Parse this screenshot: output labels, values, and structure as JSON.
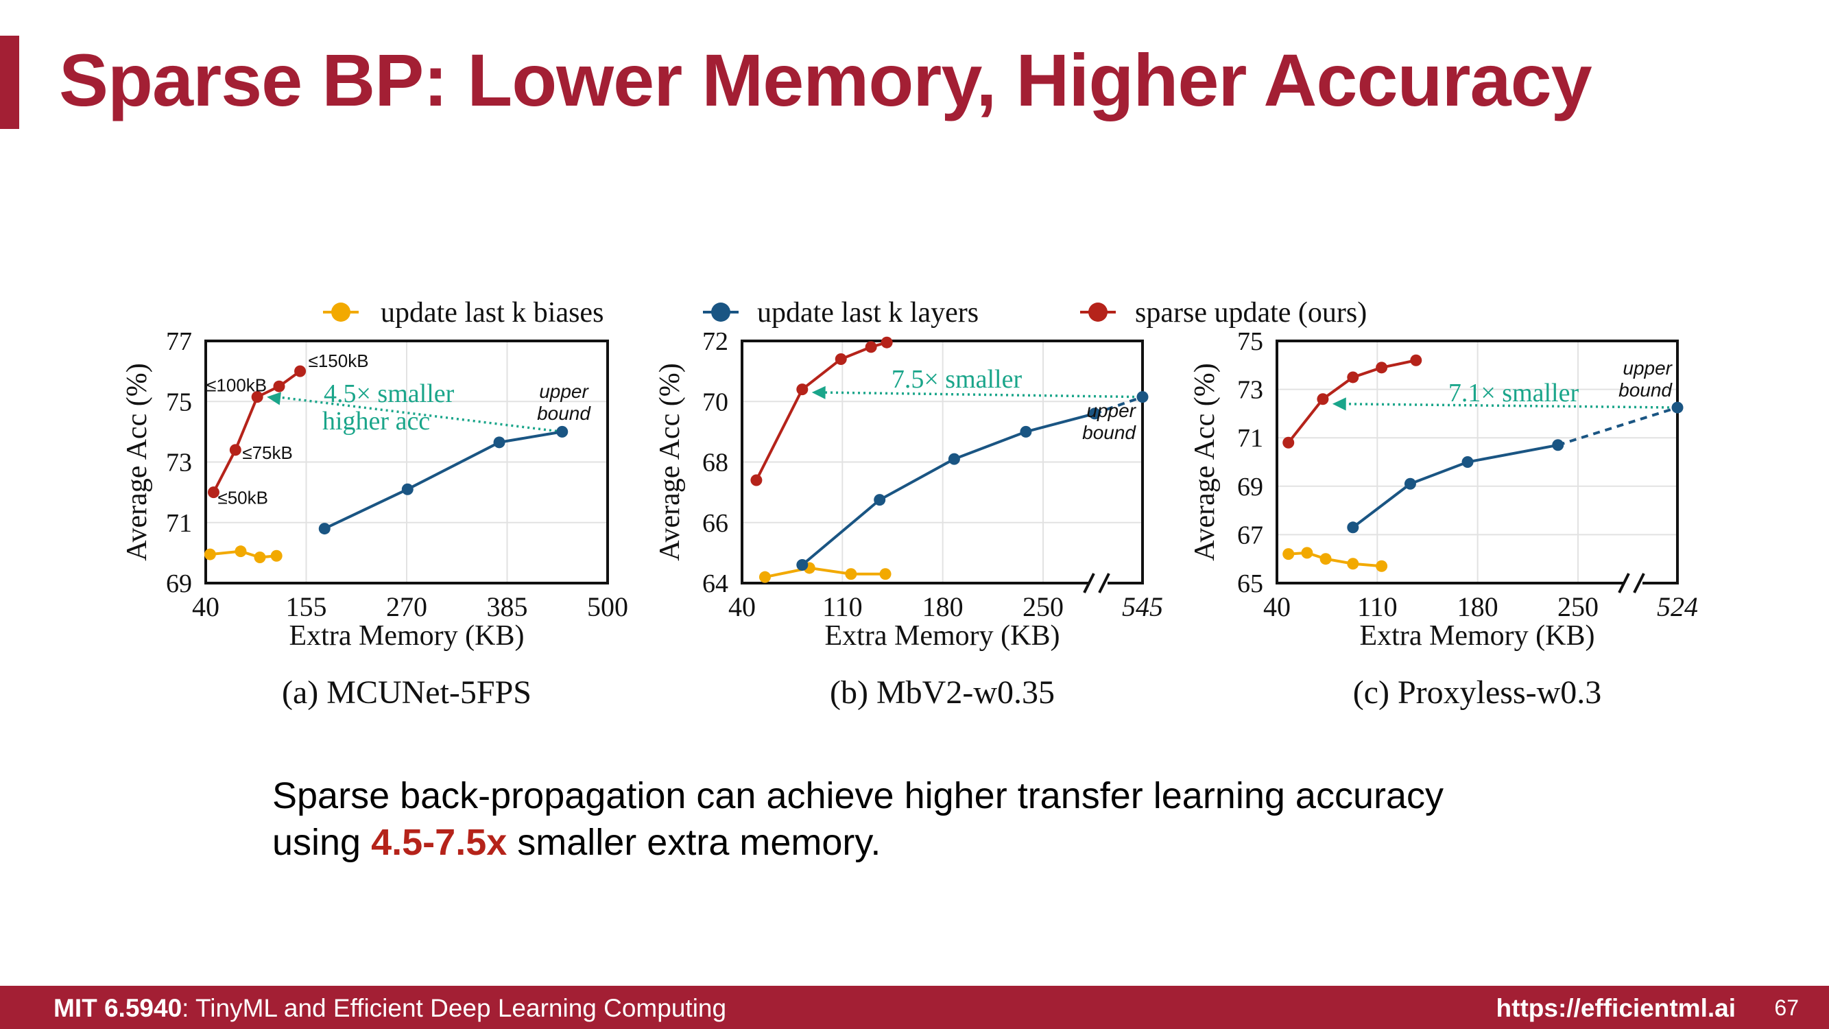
{
  "slide": {
    "title": "Sparse BP: Lower Memory, Higher Accuracy",
    "caption_line1": "Sparse back-propagation can achieve higher transfer learning accuracy",
    "caption_line2_pre": "using ",
    "caption_highlight": "4.5-7.5x",
    "caption_line2_post": " smaller extra memory.",
    "footer_course": "MIT 6.5940",
    "footer_subtitle": ": TinyML and Efficient Deep Learning Computing",
    "footer_url": "https://efficientml.ai",
    "page_number": "67"
  },
  "colors": {
    "brand": "#a31f34",
    "biases": "#f2a900",
    "layers": "#1a5583",
    "sparse": "#b5231a",
    "annotation": "#1aa58a"
  },
  "legend": [
    {
      "key": "biases",
      "label": "update last k biases"
    },
    {
      "key": "layers",
      "label": "update last k layers"
    },
    {
      "key": "sparse",
      "label": "sparse update (ours)"
    }
  ],
  "chart_data": [
    {
      "type": "line",
      "caption": "(a)  MCUNet-5FPS",
      "xlabel": "Extra Memory (KB)",
      "ylabel": "Average Acc (%)",
      "xlim": [
        40,
        500
      ],
      "ylim": [
        69,
        77
      ],
      "xticks": [
        "40",
        "155",
        "270",
        "385",
        "500"
      ],
      "yticks": [
        "69",
        "71",
        "73",
        "75",
        "77"
      ],
      "series": [
        {
          "name": "update last k biases",
          "key": "biases",
          "x": [
            45,
            80,
            102,
            121
          ],
          "y": [
            69.95,
            70.05,
            69.85,
            69.9
          ]
        },
        {
          "name": "update last k layers",
          "key": "layers",
          "x": [
            176,
            271,
            376,
            448
          ],
          "y": [
            70.8,
            72.1,
            73.65,
            74.0
          ]
        },
        {
          "name": "sparse update (ours)",
          "key": "sparse",
          "x": [
            49,
            74,
            99,
            124,
            148
          ],
          "y": [
            72.0,
            73.4,
            75.15,
            75.5,
            76.0
          ]
        }
      ],
      "point_labels": [
        {
          "series": "sparse",
          "index": 0,
          "text": "≤50kB"
        },
        {
          "series": "sparse",
          "index": 1,
          "text": "≤75kB"
        },
        {
          "series": "sparse",
          "index": 2,
          "text": "≤100kB"
        },
        {
          "series": "sparse",
          "index": 4,
          "text": "≤150kB"
        }
      ],
      "arrow": {
        "from": [
          448,
          74.0
        ],
        "to": [
          99,
          75.15
        ],
        "label": "4.5× smaller",
        "label2": "higher acc"
      },
      "upper_bound_label": [
        "upper",
        "bound"
      ]
    },
    {
      "type": "line",
      "caption": "(b)  MbV2-w0.35",
      "xlabel": "Extra Memory (KB)",
      "ylabel": "Average Acc (%)",
      "xlim": [
        40,
        280
      ],
      "ylim": [
        64,
        72
      ],
      "xticks": [
        "40",
        "110",
        "180",
        "250",
        "545"
      ],
      "yticks": [
        "64",
        "66",
        "68",
        "70",
        "72"
      ],
      "axis_break": true,
      "series": [
        {
          "name": "update last k biases",
          "key": "biases",
          "x": [
            56,
            87,
            116,
            140
          ],
          "y": [
            64.2,
            64.5,
            64.3,
            64.3
          ]
        },
        {
          "name": "update last k layers",
          "key": "layers",
          "x": [
            82,
            136,
            188,
            238,
            286
          ],
          "y": [
            64.6,
            66.75,
            68.1,
            69.0,
            69.6
          ]
        },
        {
          "name": "sparse update (ours)",
          "key": "sparse",
          "x": [
            50,
            82,
            109,
            130,
            141
          ],
          "y": [
            67.4,
            70.4,
            71.4,
            71.8,
            71.95
          ]
        }
      ],
      "upper_bound": {
        "x_label": "545",
        "y": 70.15
      },
      "arrow": {
        "to": [
          82,
          70.3
        ],
        "label": "7.5× smaller"
      },
      "upper_bound_label": [
        "upper",
        "bound"
      ]
    },
    {
      "type": "line",
      "caption": "(c)  Proxyless-w0.3",
      "xlabel": "Extra Memory (KB)",
      "ylabel": "Average Acc (%)",
      "xlim": [
        40,
        280
      ],
      "ylim": [
        65,
        75
      ],
      "xticks": [
        "40",
        "110",
        "180",
        "250",
        "524"
      ],
      "yticks": [
        "65",
        "67",
        "69",
        "71",
        "73",
        "75"
      ],
      "axis_break": true,
      "series": [
        {
          "name": "update last k biases",
          "key": "biases",
          "x": [
            48,
            61,
            74,
            93,
            113
          ],
          "y": [
            66.2,
            66.25,
            66.0,
            65.8,
            65.7
          ]
        },
        {
          "name": "update last k layers",
          "key": "layers",
          "x": [
            93,
            133,
            173,
            236
          ],
          "y": [
            67.3,
            69.1,
            70.0,
            70.7
          ]
        },
        {
          "name": "sparse update (ours)",
          "key": "sparse",
          "x": [
            48,
            72,
            93,
            113,
            137
          ],
          "y": [
            70.8,
            72.6,
            73.5,
            73.9,
            74.2
          ]
        }
      ],
      "upper_bound": {
        "x_label": "524",
        "y": 72.25
      },
      "arrow": {
        "to": [
          72,
          72.4
        ],
        "label": "7.1× smaller"
      },
      "upper_bound_label": [
        "upper",
        "bound"
      ]
    }
  ]
}
